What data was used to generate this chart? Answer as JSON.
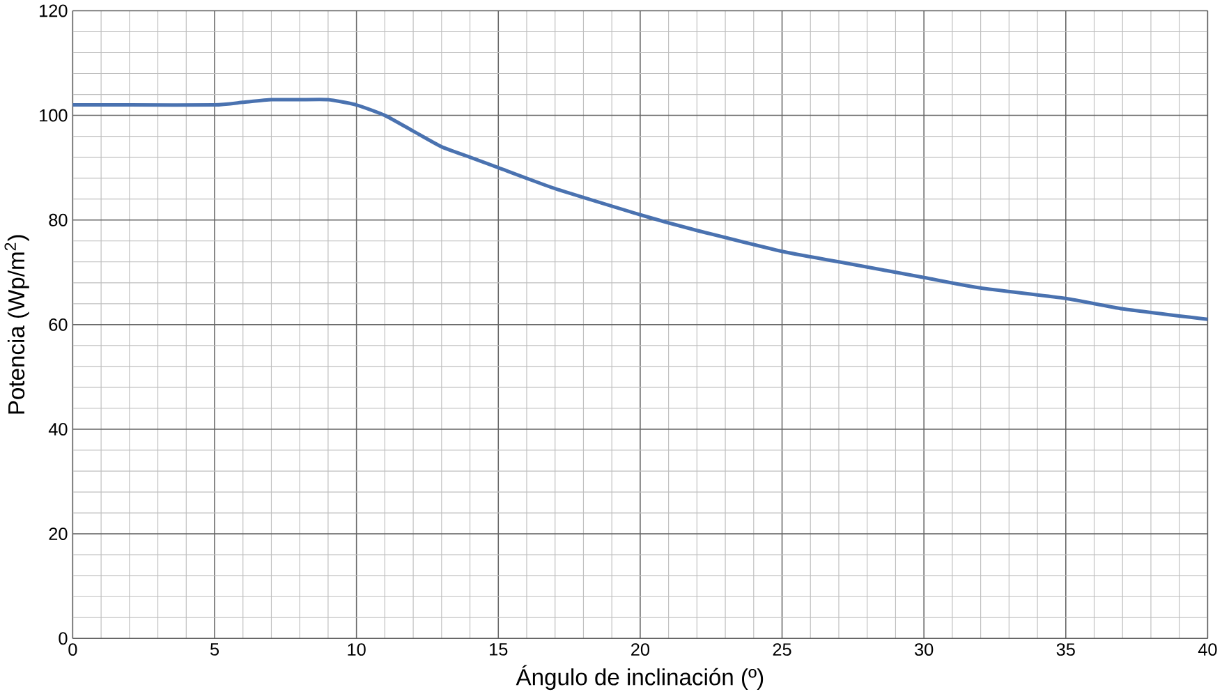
{
  "chart_data": {
    "type": "line",
    "xlabel": "Ángulo de inclinación (º)",
    "ylabel": "Potencia  (Wp/m$^{2}$)",
    "x": [
      0,
      2,
      5,
      6,
      7,
      8,
      9,
      10,
      11,
      12,
      13,
      14,
      15,
      17,
      20,
      22,
      25,
      27,
      30,
      32,
      35,
      37,
      40
    ],
    "series": [
      {
        "color": "#4a72b0",
        "values": [
          102,
          102,
          102,
          102.5,
          103,
          103,
          103,
          102,
          100,
          97,
          94,
          92,
          90,
          86,
          81,
          78,
          74,
          72,
          69,
          67,
          65,
          63,
          61
        ]
      }
    ],
    "xlim": [
      0,
      40
    ],
    "ylim": [
      0,
      120
    ],
    "xticks": [
      0,
      5,
      10,
      15,
      20,
      25,
      30,
      35,
      40
    ],
    "yticks": [
      0,
      20,
      40,
      60,
      80,
      100,
      120
    ],
    "grid": true,
    "marker": "none",
    "line_style": "solid"
  }
}
